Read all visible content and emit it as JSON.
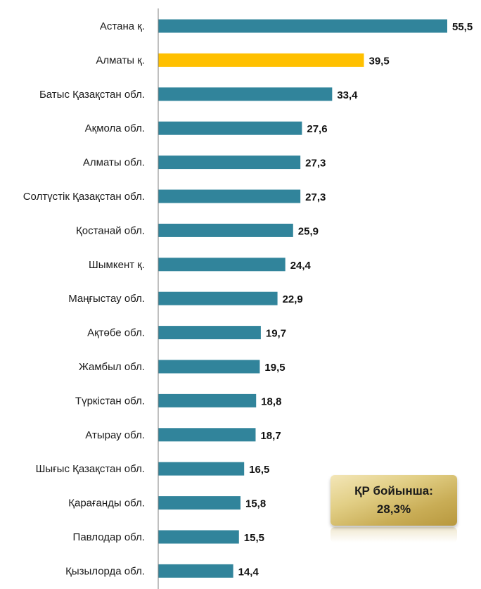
{
  "chart_data": {
    "type": "bar",
    "orientation": "horizontal",
    "categories": [
      "Астана қ.",
      "Алматы қ.",
      "Батыс Қазақстан обл.",
      "Ақмола обл.",
      "Алматы обл.",
      "Солтүстік Қазақстан обл.",
      "Қостанай обл.",
      "Шымкент қ.",
      "Маңғыстау обл.",
      "Ақтөбе обл.",
      "Жамбыл обл.",
      "Түркістан обл.",
      "Атырау обл.",
      "Шығыс Қазақстан обл.",
      "Қарағанды обл.",
      "Павлодар обл.",
      "Қызылорда обл."
    ],
    "values": [
      55.5,
      39.5,
      33.4,
      27.6,
      27.3,
      27.3,
      25.9,
      24.4,
      22.9,
      19.7,
      19.5,
      18.8,
      18.7,
      16.5,
      15.8,
      15.5,
      14.4
    ],
    "value_labels": [
      "55,5",
      "39,5",
      "33,4",
      "27,6",
      "27,3",
      "27,3",
      "25,9",
      "24,4",
      "22,9",
      "19,7",
      "19,5",
      "18,8",
      "18,7",
      "16,5",
      "15,8",
      "15,5",
      "14,4"
    ],
    "highlight_index": 1,
    "xlim": [
      0,
      55.5
    ],
    "grid": false,
    "colors": {
      "bar": "#31849b",
      "highlight": "#ffc000",
      "axis": "#7f7f7f"
    }
  },
  "total_box": {
    "line1": "ҚР бойынша:",
    "line2": "28,3%"
  }
}
